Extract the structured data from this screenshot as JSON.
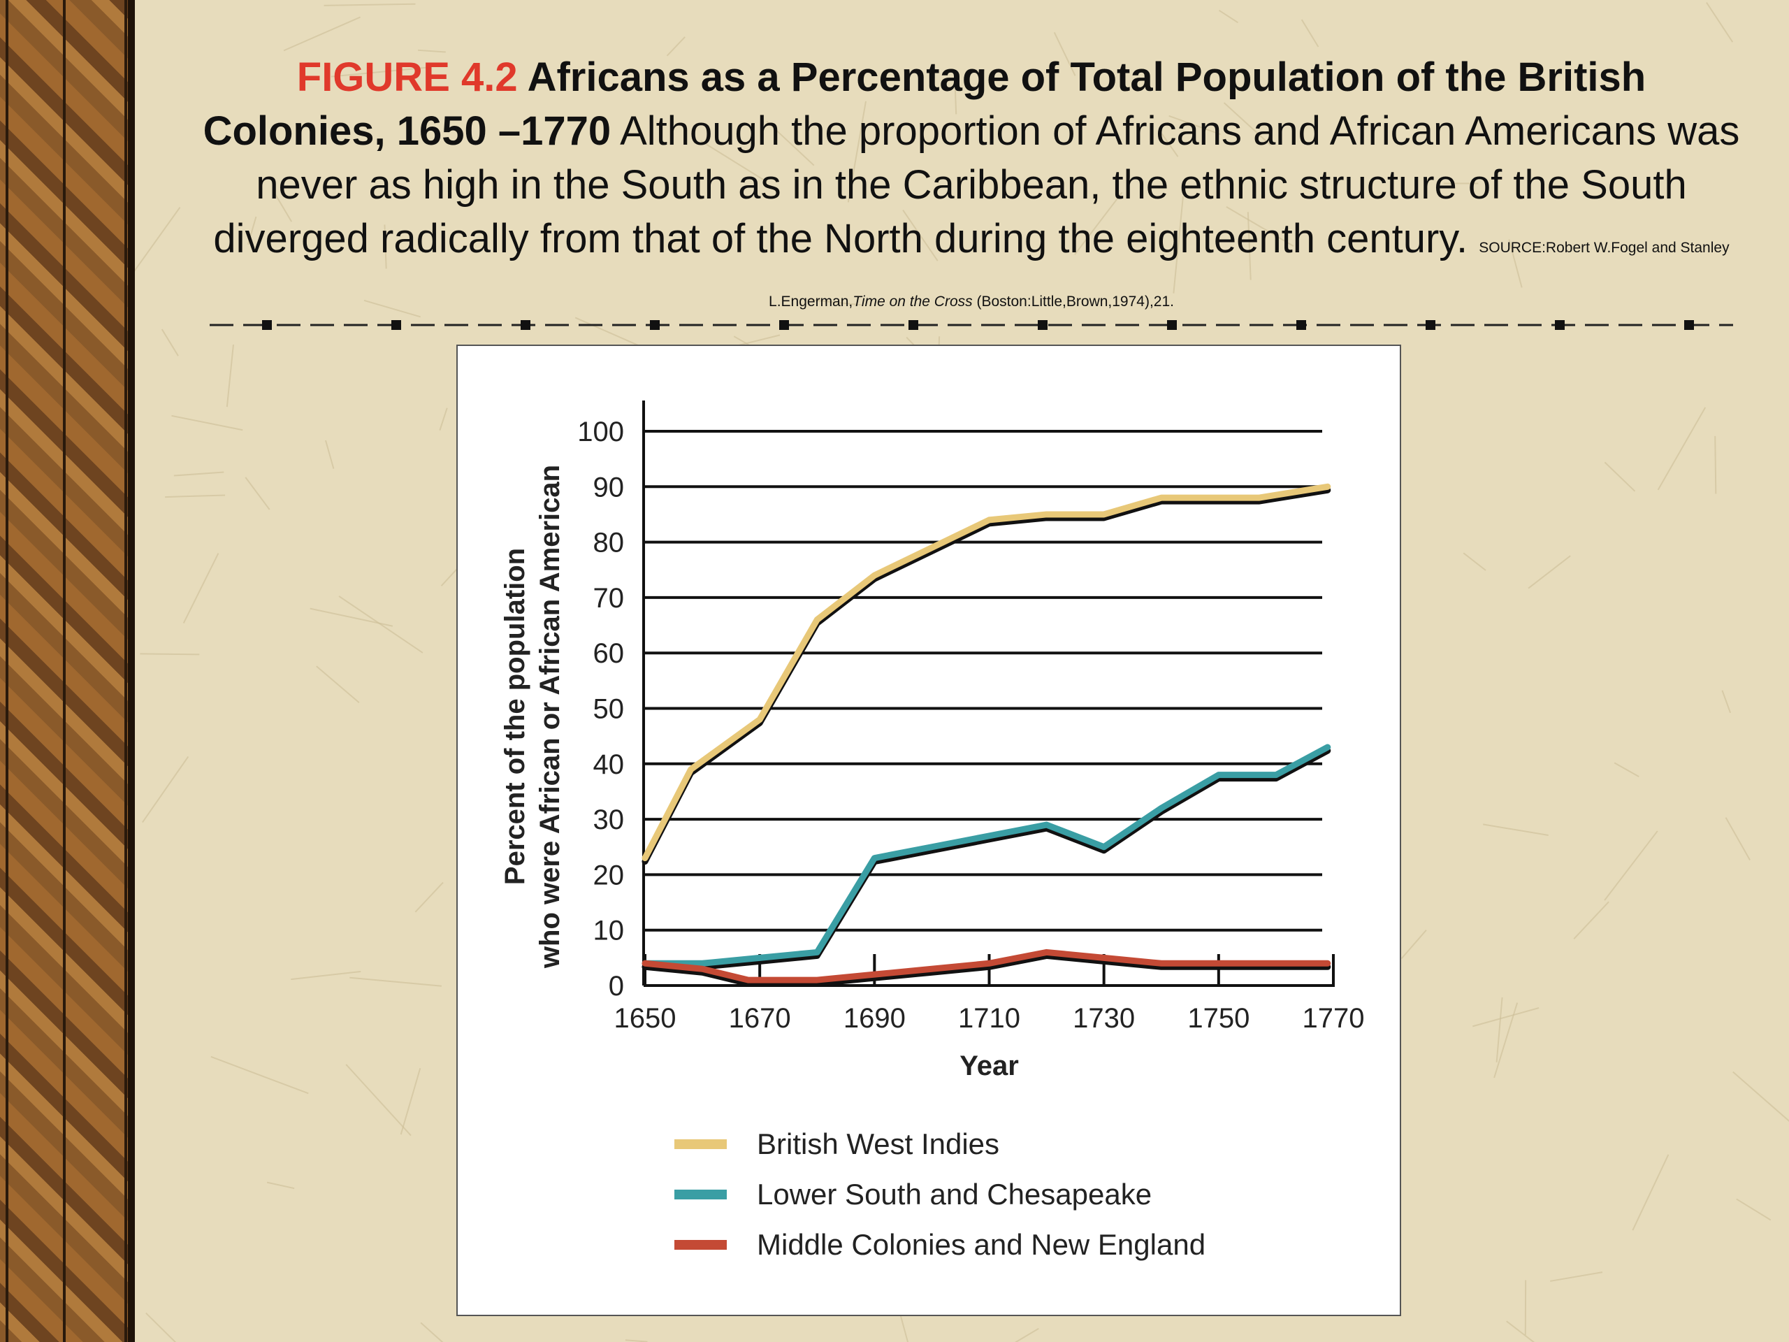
{
  "caption": {
    "figure_label": "FIGURE 4.2",
    "title": "Africans as a Percentage of Total Population of the British Colonies, 1650 –1770",
    "text": "Although the proportion of Africans and African Americans was never as high in the South as in the Caribbean, the ethnic structure of the South diverged radically from that of the North during the eighteenth century.",
    "source_prefix": "SOURCE:Robert W.Fogel and Stanley L.Engerman,",
    "source_book": "Time on the Cross",
    "source_suffix": "(Boston:Little,Brown,1974),21."
  },
  "chart_data": {
    "type": "line",
    "xlabel": "Year",
    "ylabel": [
      "Percent of the population",
      "who were African or African American"
    ],
    "xlim": [
      1650,
      1770
    ],
    "ylim": [
      0,
      100
    ],
    "xticks": [
      1650,
      1670,
      1690,
      1710,
      1730,
      1750,
      1770
    ],
    "yticks": [
      0,
      10,
      20,
      30,
      40,
      50,
      60,
      70,
      80,
      90,
      100
    ],
    "grid": "horizontal",
    "legend": "bottom",
    "series": [
      {
        "name": "British West Indies",
        "color": "#e8c878",
        "x": [
          1650,
          1658,
          1670,
          1680,
          1690,
          1700,
          1710,
          1720,
          1730,
          1740,
          1757,
          1769
        ],
        "y": [
          23,
          39,
          48,
          66,
          74,
          79,
          84,
          85,
          85,
          88,
          88,
          90
        ]
      },
      {
        "name": "Lower South and Chesapeake",
        "color": "#3a9ea4",
        "x": [
          1650,
          1660,
          1670,
          1680,
          1690,
          1700,
          1710,
          1720,
          1730,
          1740,
          1750,
          1760,
          1769
        ],
        "y": [
          4,
          4,
          5,
          6,
          23,
          25,
          27,
          29,
          25,
          32,
          38,
          38,
          43
        ]
      },
      {
        "name": "Middle Colonies and New England",
        "color": "#c44a35",
        "x": [
          1650,
          1660,
          1668,
          1680,
          1690,
          1700,
          1710,
          1720,
          1730,
          1740,
          1750,
          1760,
          1769
        ],
        "y": [
          4,
          3,
          1,
          1,
          2,
          3,
          4,
          6,
          5,
          4,
          4,
          4,
          4
        ]
      }
    ]
  }
}
